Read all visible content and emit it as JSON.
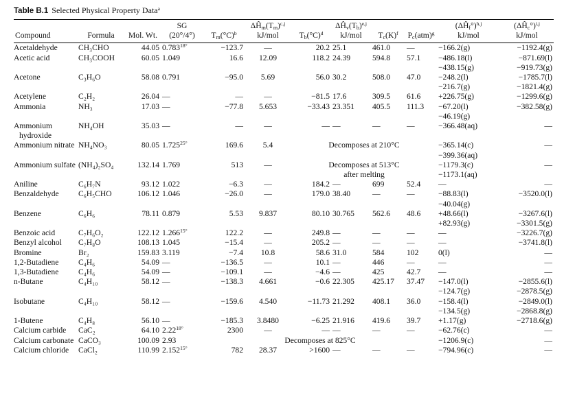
{
  "title": {
    "label": "Table B.1",
    "text": "Selected Physical Property Data",
    "note": "a"
  },
  "table": {
    "columns": [
      [
        "Compound"
      ],
      [
        "Formula"
      ],
      [
        "Mol. Wt."
      ],
      [
        "SG",
        "(20°/4°)"
      ],
      [
        [
          "T",
          {
            "sub": "m"
          },
          "(°C)",
          {
            "sup": "b"
          }
        ]
      ],
      [
        [
          "ΔĤ",
          {
            "sub": "m"
          },
          "(T",
          {
            "sub": "m"
          },
          ")",
          {
            "sup": "c,j"
          }
        ],
        "kJ/mol"
      ],
      [
        [
          "T",
          {
            "sub": "b"
          },
          "(°C)",
          {
            "sup": "d"
          }
        ]
      ],
      [
        [
          "ΔĤ",
          {
            "sub": "v"
          },
          "(T",
          {
            "sub": "b"
          },
          ")",
          {
            "sup": "e,j"
          }
        ],
        "kJ/mol"
      ],
      [
        [
          "T",
          {
            "sub": "c"
          },
          "(K)",
          {
            "sup": "f"
          }
        ]
      ],
      [
        [
          "P",
          {
            "sub": "c"
          },
          "(atm)",
          {
            "sup": "g"
          }
        ]
      ],
      [
        [
          "(ΔĤ",
          {
            "sub": "f"
          },
          "°)",
          {
            "sup": "h,j"
          }
        ],
        "kJ/mol"
      ],
      [
        [
          "(ΔĤ",
          {
            "sub": "c"
          },
          "°)",
          {
            "sup": "i,j"
          }
        ],
        "kJ/mol"
      ]
    ],
    "rows": [
      {
        "cells": [
          "Acetaldehyde",
          "CH₃CHO",
          "44.05",
          [
            [
              "0.783",
              {
                "sup": "18°"
              }
            ]
          ],
          "−123.7",
          "—",
          "20.2",
          "25.1",
          "461.0",
          "—",
          "−166.2(g)",
          "−1192.4(g)"
        ]
      },
      {
        "cells": [
          "Acetic acid",
          "CH₃COOH",
          "60.05",
          "1.049",
          "16.6",
          "12.09",
          "118.2",
          "24.39",
          "594.8",
          "57.1",
          [
            "−486.18(l)",
            "−438.15(g)"
          ],
          [
            "−871.69(l)",
            "−919.73(g)"
          ]
        ]
      },
      {
        "cells": [
          "Acetone",
          "C₃H₆O",
          "58.08",
          "0.791",
          "−95.0",
          "5.69",
          "56.0",
          "30.2",
          "508.0",
          "47.0",
          [
            "−248.2(l)",
            "−216.7(g)"
          ],
          [
            "−1785.7(l)",
            "−1821.4(g)"
          ]
        ]
      },
      {
        "cells": [
          "Acetylene",
          "C₂H₂",
          "26.04",
          "—",
          "—",
          "—",
          "−81.5",
          "17.6",
          "309.5",
          "61.6",
          "+226.75(g)",
          "−1299.6(g)"
        ]
      },
      {
        "cells": [
          "Ammonia",
          "NH₃",
          "17.03",
          "—",
          "−77.8",
          "5.653",
          "−33.43",
          "23.351",
          "405.5",
          "111.3",
          [
            "−67.20(l)",
            "−46.19(g)"
          ],
          "−382.58(g)"
        ]
      },
      {
        "cells": [
          "Ammonium hydroxide",
          "NH₄OH",
          "35.03",
          "—",
          "—",
          "—",
          "—",
          "—",
          "—",
          "—",
          "−366.48(aq)",
          "—"
        ]
      },
      {
        "cells": [
          "Ammonium nitrate",
          "NH₄NO₃",
          "80.05",
          [
            [
              "1.725",
              {
                "sup": "25°"
              }
            ]
          ],
          "169.6",
          "5.4"
        ],
        "note": [
          "Decomposes at 210°C"
        ],
        "after": [
          [
            "−365.14(c)",
            "−399.36(aq)"
          ],
          "—"
        ]
      },
      {
        "cells": [
          "Ammonium sulfate",
          "(NH₄)₂SO₄",
          "132.14",
          "1.769",
          "513",
          "—"
        ],
        "note": [
          "Decomposes at 513°C",
          "after melting"
        ],
        "after": [
          [
            "−1179.3(c)",
            "−1173.1(aq)"
          ],
          "—"
        ]
      },
      {
        "cells": [
          "Aniline",
          "C₆H₇N",
          "93.12",
          "1.022",
          "−6.3",
          "—",
          "184.2",
          "—",
          "699",
          "52.4",
          "—",
          "—"
        ]
      },
      {
        "cells": [
          "Benzaldehyde",
          "C₆H₅CHO",
          "106.12",
          "1.046",
          "−26.0",
          "—",
          "179.0",
          "38.40",
          "—",
          "—",
          [
            "−88.83(l)",
            "−40.04(g)"
          ],
          "−3520.0(l)"
        ]
      },
      {
        "cells": [
          "Benzene",
          "C₆H₆",
          "78.11",
          "0.879",
          "5.53",
          "9.837",
          "80.10",
          "30.765",
          "562.6",
          "48.6",
          [
            "+48.66(l)",
            "+82.93(g)"
          ],
          [
            "−3267.6(l)",
            "−3301.5(g)"
          ]
        ]
      },
      {
        "cells": [
          "Benzoic acid",
          "C₇H₆O₂",
          "122.12",
          [
            [
              "1.266",
              {
                "sup": "15°"
              }
            ]
          ],
          "122.2",
          "—",
          "249.8",
          "—",
          "—",
          "—",
          "—",
          "−3226.7(g)"
        ]
      },
      {
        "cells": [
          "Benzyl alcohol",
          "C₇H₈O",
          "108.13",
          "1.045",
          "−15.4",
          "—",
          "205.2",
          "—",
          "—",
          "—",
          "—",
          "−3741.8(l)"
        ]
      },
      {
        "cells": [
          "Bromine",
          "Br₂",
          "159.83",
          "3.119",
          "−7.4",
          "10.8",
          "58.6",
          "31.0",
          "584",
          "102",
          "0(l)",
          "—"
        ]
      },
      {
        "cells": [
          "1,2-Butadiene",
          "C₄H₆",
          "54.09",
          "—",
          "−136.5",
          "—",
          "10.1",
          "—",
          "446",
          "—",
          "—",
          "—"
        ]
      },
      {
        "cells": [
          "1,3-Butadiene",
          "C₄H₆",
          "54.09",
          "—",
          "−109.1",
          "—",
          "−4.6",
          "—",
          "425",
          "42.7",
          "—",
          "—"
        ]
      },
      {
        "cells": [
          "n-Butane",
          "C₄H₁₀",
          "58.12",
          "—",
          "−138.3",
          "4.661",
          "−0.6",
          "22.305",
          "425.17",
          "37.47",
          [
            "−147.0(l)",
            "−124.7(g)"
          ],
          [
            "−2855.6(l)",
            "−2878.5(g)"
          ]
        ]
      },
      {
        "cells": [
          "Isobutane",
          "C₄H₁₀",
          "58.12",
          "—",
          "−159.6",
          "4.540",
          "−11.73",
          "21.292",
          "408.1",
          "36.0",
          [
            "−158.4(l)",
            "−134.5(g)"
          ],
          [
            "−2849.0(l)",
            "−2868.8(g)"
          ]
        ]
      },
      {
        "cells": [
          "1-Butene",
          "C₄H₈",
          "56.10",
          "—",
          "−185.3",
          "3.8480",
          "−6.25",
          "21.916",
          "419.6",
          "39.7",
          "+1.17(g)",
          "−2718.6(g)"
        ]
      },
      {
        "cells": [
          "Calcium carbide",
          "CaC₂",
          "64.10",
          [
            [
              "2.22",
              {
                "sup": "18°"
              }
            ]
          ],
          "2300",
          "—",
          "—",
          "—",
          "—",
          "—",
          "−62.76(c)",
          "—"
        ]
      },
      {
        "cells": [
          "Calcium carbonate",
          "CaCO₃",
          "100.09",
          "2.93"
        ],
        "note": [
          "Decomposes at 825°C"
        ],
        "after": [
          "−1206.9(c)",
          "—"
        ]
      },
      {
        "cells": [
          "Calcium chloride",
          "CaCl₂",
          "110.99",
          [
            [
              "2.152",
              {
                "sup": "15°"
              }
            ]
          ],
          "782",
          "28.37",
          ">1600",
          "—",
          "—",
          "—",
          "−794.96(c)",
          "—"
        ]
      }
    ]
  }
}
